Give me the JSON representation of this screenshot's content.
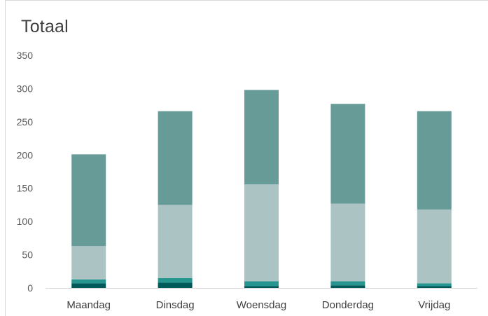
{
  "chart_data": {
    "type": "bar",
    "stacked": true,
    "title": "Totaal",
    "xlabel": "",
    "ylabel": "",
    "ylim": [
      0,
      350
    ],
    "yticks": [
      "0",
      "50",
      "100",
      "150",
      "200",
      "250",
      "300",
      "350"
    ],
    "grid": false,
    "legend": "none",
    "categories": [
      "Maandag",
      "Dinsdag",
      "Woensdag",
      "Donderdag",
      "Vrijdag"
    ],
    "series": [
      {
        "color": "#005a5a",
        "values": [
          7,
          8,
          3,
          4,
          3
        ]
      },
      {
        "color": "#26958f",
        "values": [
          6,
          7,
          7,
          6,
          4
        ]
      },
      {
        "color": "#abc3c3",
        "values": [
          50,
          110,
          146,
          117,
          111
        ]
      },
      {
        "color": "#679b98",
        "values": [
          138,
          141,
          142,
          150,
          148
        ]
      }
    ]
  }
}
